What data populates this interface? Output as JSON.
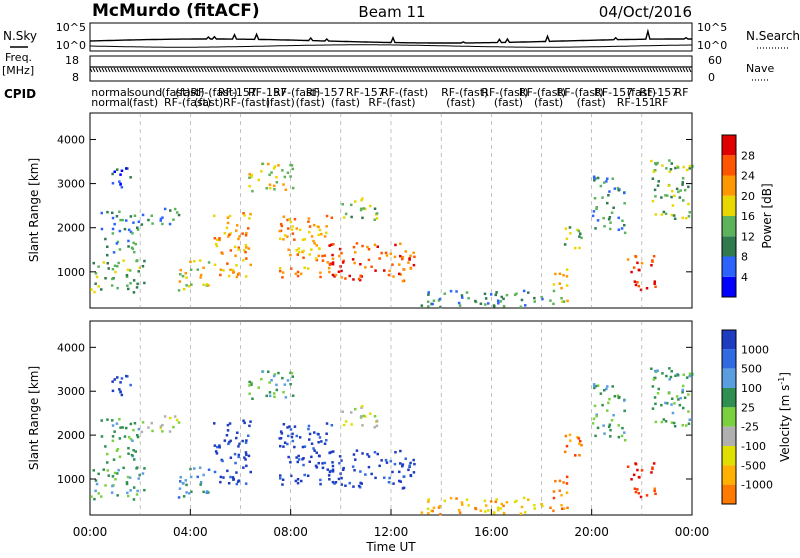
{
  "header": {
    "station": "McMurdo (fitACF)",
    "beam": "Beam 11",
    "date": "04/Oct/2016"
  },
  "strips": {
    "nsky_label": "N.Sky",
    "nsearch_label": "N.Search",
    "nsky_ticks": [
      "10^5",
      "10^0"
    ],
    "nsearch_ticks": [
      "10^5",
      "10^0"
    ],
    "freq_label_1": "Freq.",
    "freq_label_2": "[MHz]",
    "freq_ticks": [
      "18",
      "8"
    ],
    "nave_label": "Nave",
    "nave_ticks": [
      "60",
      "0"
    ],
    "cpid_label": "CPID",
    "cpid_row1": [
      {
        "t": 0.05,
        "text": "normal"
      },
      {
        "t": 1.55,
        "text": "sound"
      },
      {
        "t": 2.85,
        "text": "(fast)"
      },
      {
        "t": 3.4,
        "text": "(fast)"
      },
      {
        "t": 4.0,
        "text": "RF-(fast)"
      },
      {
        "t": 5.1,
        "text": "RF-157"
      },
      {
        "t": 6.3,
        "text": "RF-157"
      },
      {
        "t": 7.3,
        "text": "RF-(fast)"
      },
      {
        "t": 8.6,
        "text": "RF-157"
      },
      {
        "t": 10.2,
        "text": "RF-157"
      },
      {
        "t": 11.6,
        "text": "RF-(fast)"
      },
      {
        "t": 14.0,
        "text": "RF-(fast)"
      },
      {
        "t": 15.6,
        "text": "RF-(fast)"
      },
      {
        "t": 17.1,
        "text": "RF-(fast)"
      },
      {
        "t": 18.6,
        "text": "RF-(fast)"
      },
      {
        "t": 20.1,
        "text": "RF-157"
      },
      {
        "t": 21.4,
        "text": "(fast)"
      },
      {
        "t": 21.9,
        "text": "RF-157"
      },
      {
        "t": 23.3,
        "text": "RF"
      }
    ],
    "cpid_row2": [
      {
        "t": 0.05,
        "text": "normal"
      },
      {
        "t": 1.55,
        "text": "(fast)"
      },
      {
        "t": 2.95,
        "text": "RF-(fast)"
      },
      {
        "t": 4.15,
        "text": "(fast)"
      },
      {
        "t": 5.3,
        "text": "RF-(fast)"
      },
      {
        "t": 7.0,
        "text": "(fast)"
      },
      {
        "t": 8.2,
        "text": "(fast)"
      },
      {
        "t": 9.6,
        "text": "(fast)"
      },
      {
        "t": 11.1,
        "text": "RF-(fast)"
      },
      {
        "t": 14.2,
        "text": "(fast)"
      },
      {
        "t": 16.1,
        "text": "(fast)"
      },
      {
        "t": 17.7,
        "text": "(fast)"
      },
      {
        "t": 19.4,
        "text": "(fast)"
      },
      {
        "t": 21.0,
        "text": "RF-151"
      },
      {
        "t": 22.5,
        "text": "RF"
      }
    ]
  },
  "colors": {
    "power": [
      "#0000ff",
      "#2c63ff",
      "#307a4e",
      "#5cb35c",
      "#e8d800",
      "#ff9800",
      "#ff5500",
      "#e00000"
    ],
    "velocity": [
      "#1e3cc0",
      "#2f6ae0",
      "#5a9ee0",
      "#2f8f50",
      "#7bd040",
      "#b0b0b0",
      "#e0e000",
      "#ffb000",
      "#ff7a00",
      "#ff3a00",
      "#e00000"
    ],
    "strip": "#000000"
  },
  "power_colorbar": {
    "label": "Power [dB]",
    "ticks": [
      "28",
      "24",
      "20",
      "16",
      "12",
      "8",
      "4"
    ]
  },
  "velocity_colorbar": {
    "label": "Velocity [m s",
    "label_sup": "-1",
    "label_end": "]",
    "ticks": [
      "1000",
      "500",
      "100",
      "25",
      "-25",
      "-100",
      "-500",
      "-1000"
    ]
  },
  "chart_data": {
    "type": "heatmap",
    "panels": [
      "power",
      "velocity"
    ],
    "xlabel": "Time UT",
    "ylabel": "Slant Range [km]",
    "x_ticks": [
      "00:00",
      "04:00",
      "08:00",
      "12:00",
      "16:00",
      "20:00",
      "00:00"
    ],
    "xlim": [
      0,
      24
    ],
    "ylim": [
      180,
      4600
    ],
    "y_ticks": [
      1000,
      2000,
      3000,
      4000
    ],
    "power_ticks_db": [
      4,
      8,
      12,
      16,
      20,
      24,
      28
    ],
    "velocity_ticks_ms": [
      -1000,
      -500,
      -100,
      -25,
      25,
      100,
      500,
      1000
    ],
    "echo_regions": [
      {
        "t0": 0.0,
        "t1": 2.2,
        "r0": 550,
        "r1": 1300,
        "pw": 3,
        "vel": 3
      },
      {
        "t0": 0.4,
        "t1": 1.9,
        "r0": 1400,
        "r1": 2400,
        "pw": 2,
        "vel": 3
      },
      {
        "t0": 0.8,
        "t1": 1.8,
        "r0": 2900,
        "r1": 3400,
        "pw": 1,
        "vel": 0
      },
      {
        "t0": 2.0,
        "t1": 3.6,
        "r0": 2100,
        "r1": 2500,
        "pw": 2,
        "vel": 5
      },
      {
        "t0": 3.5,
        "t1": 5.0,
        "r0": 600,
        "r1": 1300,
        "pw": 4,
        "vel": 2
      },
      {
        "t0": 4.9,
        "t1": 6.4,
        "r0": 900,
        "r1": 2400,
        "pw": 5,
        "vel": 0
      },
      {
        "t0": 6.3,
        "t1": 8.2,
        "r0": 2800,
        "r1": 3500,
        "pw": 4,
        "vel": 3
      },
      {
        "t0": 7.5,
        "t1": 9.6,
        "r0": 850,
        "r1": 2300,
        "pw": 5,
        "vel": 0
      },
      {
        "t0": 9.5,
        "t1": 12.9,
        "r0": 800,
        "r1": 1700,
        "pw": 6,
        "vel": 0
      },
      {
        "t0": 10.0,
        "t1": 11.6,
        "r0": 2200,
        "r1": 2700,
        "pw": 3,
        "vel": 5
      },
      {
        "t0": 13.0,
        "t1": 18.0,
        "r0": 200,
        "r1": 600,
        "pw": 2,
        "vel": 7
      },
      {
        "t0": 18.3,
        "t1": 19.0,
        "r0": 300,
        "r1": 1200,
        "pw": 4,
        "vel": 8
      },
      {
        "t0": 18.8,
        "t1": 19.6,
        "r0": 1500,
        "r1": 2100,
        "pw": 3,
        "vel": 8
      },
      {
        "t0": 20.0,
        "t1": 21.3,
        "r0": 1900,
        "r1": 3200,
        "pw": 2,
        "vel": 3
      },
      {
        "t0": 21.4,
        "t1": 22.5,
        "r0": 600,
        "r1": 1400,
        "pw": 6,
        "vel": 9
      },
      {
        "t0": 22.3,
        "t1": 24.0,
        "r0": 2200,
        "r1": 3600,
        "pw": 3,
        "vel": 3
      }
    ]
  }
}
